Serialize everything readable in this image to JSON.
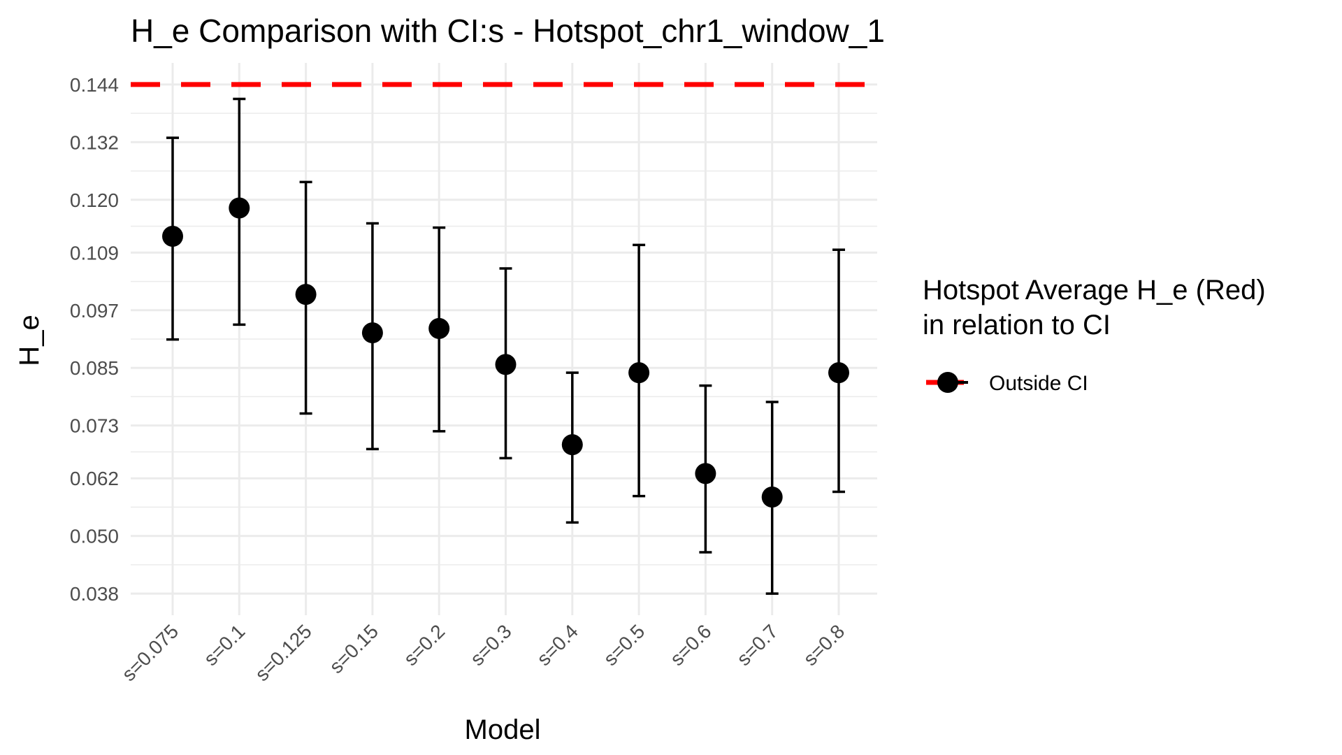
{
  "chart_data": {
    "type": "scatter",
    "title": "H_e Comparison with CI:s -  Hotspot_chr1_window_1",
    "xlabel": "Model",
    "ylabel": "H_e",
    "categories": [
      "s=0.075",
      "s=0.1",
      "s=0.125",
      "s=0.15",
      "s=0.2",
      "s=0.3",
      "s=0.4",
      "s=0.5",
      "s=0.6",
      "s=0.7",
      "s=0.8"
    ],
    "points": [
      0.1124,
      0.1183,
      0.1003,
      0.0923,
      0.0932,
      0.0857,
      0.069,
      0.084,
      0.063,
      0.0581,
      0.084
    ],
    "ci_lower": [
      0.0909,
      0.094,
      0.0755,
      0.0681,
      0.0718,
      0.0662,
      0.0528,
      0.0583,
      0.0466,
      0.038,
      0.0592
    ],
    "ci_upper": [
      0.1329,
      0.141,
      0.1237,
      0.1151,
      0.1142,
      0.1057,
      0.084,
      0.1106,
      0.0813,
      0.0779,
      0.1096
    ],
    "y_ticks": [
      "0.038",
      "0.050",
      "0.062",
      "0.073",
      "0.085",
      "0.097",
      "0.109",
      "0.120",
      "0.132",
      "0.144"
    ],
    "y_tick_values": [
      0.038,
      0.05,
      0.062,
      0.073,
      0.085,
      0.097,
      0.109,
      0.12,
      0.132,
      0.144
    ],
    "ylim": [
      0.0335,
      0.1485
    ],
    "reference_line": {
      "value": 0.144,
      "color": "#ff0000",
      "style": "dashed"
    },
    "point_color": "#000000",
    "legend": {
      "title_line1": "Hotspot Average H_e (Red)",
      "title_line2": "in relation to CI",
      "entries": [
        "Outside CI"
      ],
      "position": "right"
    },
    "grid": true
  }
}
